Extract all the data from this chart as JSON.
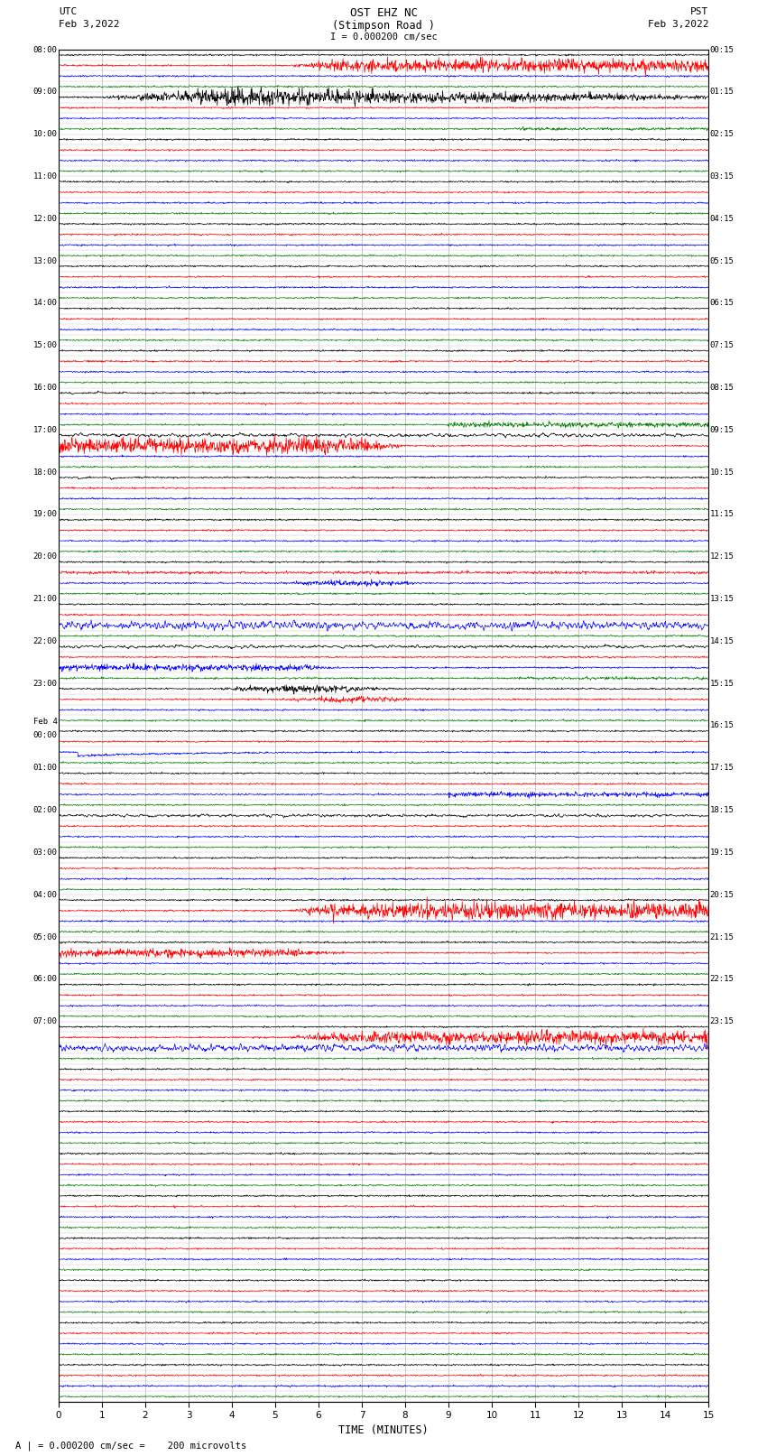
{
  "title_line1": "OST EHZ NC",
  "title_line2": "(Stimpson Road )",
  "scale_text": "I = 0.000200 cm/sec",
  "footer_text": "A | = 0.000200 cm/sec =    200 microvolts",
  "left_label_top1": "UTC",
  "left_label_top2": "Feb 3,2022",
  "right_label_top1": "PST",
  "right_label_top2": "Feb 3,2022",
  "xlabel": "TIME (MINUTES)",
  "xlim": [
    0,
    15
  ],
  "xticks": [
    0,
    1,
    2,
    3,
    4,
    5,
    6,
    7,
    8,
    9,
    10,
    11,
    12,
    13,
    14,
    15
  ],
  "num_rows": 32,
  "traces_per_row": 4,
  "trace_colors": [
    "black",
    "red",
    "blue",
    "green"
  ],
  "left_time_labels": [
    "08:00",
    "09:00",
    "10:00",
    "11:00",
    "12:00",
    "13:00",
    "14:00",
    "15:00",
    "16:00",
    "17:00",
    "18:00",
    "19:00",
    "20:00",
    "21:00",
    "22:00",
    "23:00",
    "Feb 4\n00:00",
    "01:00",
    "02:00",
    "03:00",
    "04:00",
    "05:00",
    "06:00",
    "07:00",
    "",
    "",
    "",
    "",
    "",
    "",
    "",
    "",
    ""
  ],
  "right_time_labels": [
    "00:15",
    "01:15",
    "02:15",
    "03:15",
    "04:15",
    "05:15",
    "06:15",
    "07:15",
    "08:15",
    "09:15",
    "10:15",
    "11:15",
    "12:15",
    "13:15",
    "14:15",
    "15:15",
    "16:15",
    "17:15",
    "18:15",
    "19:15",
    "20:15",
    "21:15",
    "22:15",
    "23:15",
    "",
    "",
    "",
    "",
    "",
    "",
    "",
    "",
    ""
  ],
  "background_color": "#ffffff",
  "grid_color": "#999999",
  "seed": 12345
}
